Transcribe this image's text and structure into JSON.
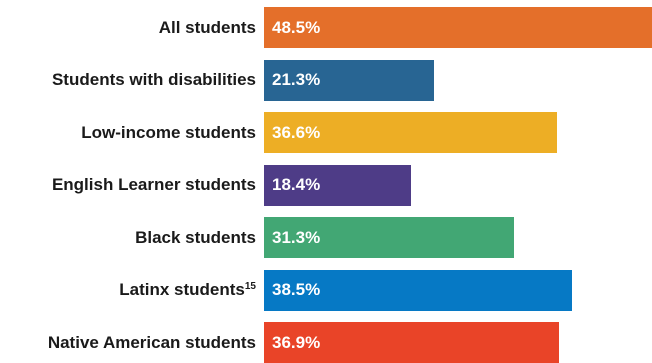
{
  "chart_data": {
    "type": "bar",
    "orientation": "horizontal",
    "title": "",
    "xlabel": "",
    "ylabel": "",
    "xlim": [
      0,
      48.5
    ],
    "grid": false,
    "categories": [
      {
        "label": "All students",
        "sup": ""
      },
      {
        "label": "Students with disabilities",
        "sup": ""
      },
      {
        "label": "Low-income students",
        "sup": ""
      },
      {
        "label": "English Learner students",
        "sup": ""
      },
      {
        "label": "Black students",
        "sup": ""
      },
      {
        "label": "Latinx students",
        "sup": "15"
      },
      {
        "label": "Native American students",
        "sup": ""
      }
    ],
    "values": [
      48.5,
      21.3,
      36.6,
      18.4,
      31.3,
      38.5,
      36.9
    ],
    "value_labels": [
      "48.5%",
      "21.3%",
      "36.6%",
      "18.4%",
      "31.3%",
      "38.5%",
      "36.9%"
    ],
    "colors": [
      "#E46F2A",
      "#286593",
      "#EDAE25",
      "#4E3C87",
      "#42A774",
      "#0679C5",
      "#E94428"
    ]
  }
}
